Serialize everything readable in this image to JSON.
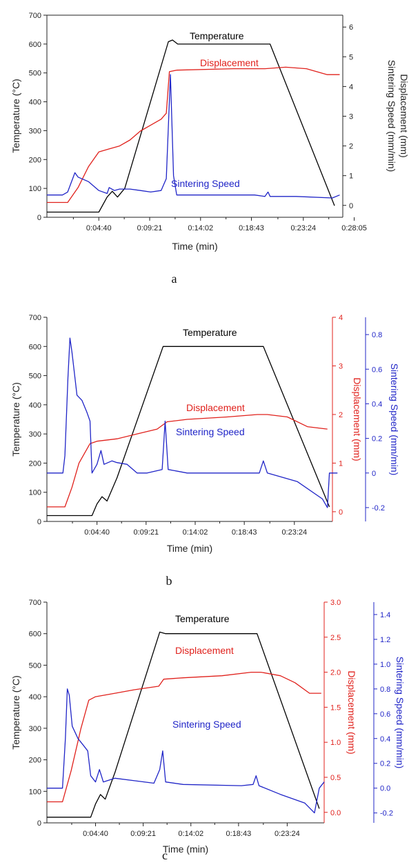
{
  "chart_data": [
    {
      "type": "line",
      "panel_label": "a",
      "xlabel": "Time (min)",
      "x_ticks": [
        "0:04:40",
        "0:09:21",
        "0:14:02",
        "0:18:43",
        "0:23:24",
        "0:28:05"
      ],
      "xlim_min": [
        0,
        28.5
      ],
      "ylabel_left": "Temperature (°C)",
      "ylim_left": [
        0,
        700
      ],
      "y_ticks_left": [
        0,
        100,
        200,
        300,
        400,
        500,
        600,
        700
      ],
      "ylabel_right": "Displacement (mm)",
      "ylabel_right2": "Sintering Speed (mm/min)",
      "ylim_right": [
        -0.4,
        6.4
      ],
      "y_ticks_right": [
        0,
        1,
        2,
        3,
        4,
        5,
        6
      ],
      "right_axes": "shared",
      "series": [
        {
          "name": "Temperature",
          "color": "#000000",
          "axis": "left",
          "points": [
            [
              0,
              18
            ],
            [
              5,
              18
            ],
            [
              5.8,
              70
            ],
            [
              6.3,
              90
            ],
            [
              6.8,
              70
            ],
            [
              7.5,
              100
            ],
            [
              11.7,
              608
            ],
            [
              12.1,
              614
            ],
            [
              12.6,
              600
            ],
            [
              21.5,
              600
            ],
            [
              27.7,
              40
            ]
          ]
        },
        {
          "name": "Displacement",
          "color": "#e0201b",
          "axis": "right",
          "points": [
            [
              0,
              0.1
            ],
            [
              2,
              0.1
            ],
            [
              3,
              0.6
            ],
            [
              4,
              1.3
            ],
            [
              5,
              1.8
            ],
            [
              6,
              1.9
            ],
            [
              7,
              2.0
            ],
            [
              8,
              2.2
            ],
            [
              9,
              2.5
            ],
            [
              10,
              2.7
            ],
            [
              11,
              2.9
            ],
            [
              11.5,
              3.1
            ],
            [
              11.8,
              4.5
            ],
            [
              12.5,
              4.55
            ],
            [
              18,
              4.6
            ],
            [
              21,
              4.6
            ],
            [
              23,
              4.65
            ],
            [
              25,
              4.6
            ],
            [
              27,
              4.4
            ],
            [
              28.2,
              4.4
            ]
          ]
        },
        {
          "name": "Sintering Speed",
          "color": "#1f24c7",
          "axis": "right",
          "points": [
            [
              0,
              0.35
            ],
            [
              1.5,
              0.35
            ],
            [
              2,
              0.45
            ],
            [
              2.7,
              1.1
            ],
            [
              3,
              0.95
            ],
            [
              4,
              0.8
            ],
            [
              5,
              0.5
            ],
            [
              5.8,
              0.4
            ],
            [
              6,
              0.6
            ],
            [
              6.5,
              0.5
            ],
            [
              7,
              0.55
            ],
            [
              8,
              0.55
            ],
            [
              9,
              0.5
            ],
            [
              10,
              0.45
            ],
            [
              11,
              0.5
            ],
            [
              11.5,
              0.9
            ],
            [
              11.9,
              4.4
            ],
            [
              12.2,
              1.0
            ],
            [
              12.5,
              0.35
            ],
            [
              20,
              0.35
            ],
            [
              21,
              0.3
            ],
            [
              21.3,
              0.45
            ],
            [
              21.5,
              0.3
            ],
            [
              24,
              0.3
            ],
            [
              27.5,
              0.25
            ],
            [
              28.2,
              0.35
            ]
          ]
        }
      ]
    },
    {
      "type": "line",
      "panel_label": "b",
      "xlabel": "Time (min)",
      "x_ticks": [
        "0:04:40",
        "0:09:21",
        "0:14:02",
        "0:18:43",
        "0:23:24"
      ],
      "xlim_min": [
        0,
        28.5
      ],
      "ylabel_left": "Temperature (°C)",
      "ylim_left": [
        0,
        700
      ],
      "y_ticks_left": [
        0,
        100,
        200,
        300,
        400,
        500,
        600,
        700
      ],
      "ylabel_right": "Displacement (mm)",
      "ylim_right": [
        -0.2,
        4
      ],
      "y_ticks_right": [
        0,
        1,
        2,
        3,
        4
      ],
      "ylabel_right2": "Sintering Speed (mm/min)",
      "ylim_right2": [
        -0.28,
        0.9
      ],
      "y_ticks_right2": [
        -0.2,
        0.0,
        0.2,
        0.4,
        0.6,
        0.8
      ],
      "series": [
        {
          "name": "Temperature",
          "color": "#000000",
          "axis": "left",
          "points": [
            [
              0,
              20
            ],
            [
              4.5,
              20
            ],
            [
              5,
              60
            ],
            [
              5.5,
              85
            ],
            [
              6,
              70
            ],
            [
              7,
              150
            ],
            [
              11.6,
              600
            ],
            [
              12,
              600
            ],
            [
              21.6,
              600
            ],
            [
              28.2,
              50
            ]
          ]
        },
        {
          "name": "Displacement",
          "color": "#e0201b",
          "axis": "right",
          "points": [
            [
              0,
              0.1
            ],
            [
              1.8,
              0.1
            ],
            [
              2.5,
              0.5
            ],
            [
              3.2,
              1.0
            ],
            [
              4.3,
              1.4
            ],
            [
              5,
              1.45
            ],
            [
              7,
              1.5
            ],
            [
              9,
              1.6
            ],
            [
              11,
              1.7
            ],
            [
              12,
              1.85
            ],
            [
              14,
              1.9
            ],
            [
              18,
              1.95
            ],
            [
              21,
              2.0
            ],
            [
              22,
              2.0
            ],
            [
              24,
              1.95
            ],
            [
              26,
              1.75
            ],
            [
              28,
              1.7
            ]
          ]
        },
        {
          "name": "Sintering Speed",
          "color": "#1f24c7",
          "axis": "right2",
          "points": [
            [
              0,
              0.0
            ],
            [
              1.6,
              0.0
            ],
            [
              1.8,
              0.1
            ],
            [
              2.1,
              0.55
            ],
            [
              2.3,
              0.78
            ],
            [
              2.5,
              0.7
            ],
            [
              3,
              0.45
            ],
            [
              3.5,
              0.42
            ],
            [
              4,
              0.35
            ],
            [
              4.3,
              0.3
            ],
            [
              4.5,
              0.0
            ],
            [
              5,
              0.05
            ],
            [
              5.4,
              0.13
            ],
            [
              5.7,
              0.05
            ],
            [
              6.5,
              0.07
            ],
            [
              7,
              0.06
            ],
            [
              8,
              0.05
            ],
            [
              9,
              0.0
            ],
            [
              10,
              0.0
            ],
            [
              11.5,
              0.02
            ],
            [
              11.8,
              0.3
            ],
            [
              12.1,
              0.02
            ],
            [
              14,
              0.0
            ],
            [
              20,
              0.0
            ],
            [
              21.2,
              0.0
            ],
            [
              21.6,
              0.07
            ],
            [
              22,
              0.0
            ],
            [
              25,
              -0.05
            ],
            [
              27.5,
              -0.15
            ],
            [
              28,
              -0.2
            ],
            [
              28.2,
              0.0
            ],
            [
              29,
              0.0
            ]
          ]
        }
      ]
    },
    {
      "type": "line",
      "panel_label": "c",
      "xlabel": "Time (min)",
      "x_ticks": [
        "0:04:40",
        "0:09:21",
        "0:14:02",
        "0:18:43",
        "0:23:24"
      ],
      "xlim_min": [
        0,
        28.5
      ],
      "ylabel_left": "Temperature (°C)",
      "ylim_left": [
        0,
        700
      ],
      "y_ticks_left": [
        0,
        100,
        200,
        300,
        400,
        500,
        600,
        700
      ],
      "ylabel_right": "Displacement (mm)",
      "ylim_right": [
        -0.15,
        3.0
      ],
      "y_ticks_right": [
        "0.0",
        "0.5",
        "1.0",
        "1.5",
        "2.0",
        "2.5",
        "3.0"
      ],
      "ylabel_right2": "Sintering Speed (mm/min)",
      "ylim_right2": [
        -0.28,
        1.5
      ],
      "y_ticks_right2": [
        "-0.2",
        "0.0",
        "0.2",
        "0.4",
        "0.6",
        "0.8",
        "1.0",
        "1.2",
        "1.4"
      ],
      "series": [
        {
          "name": "Temperature",
          "color": "#000000",
          "axis": "left",
          "points": [
            [
              0,
              18
            ],
            [
              4.5,
              18
            ],
            [
              5,
              60
            ],
            [
              5.5,
              90
            ],
            [
              6,
              75
            ],
            [
              7,
              160
            ],
            [
              11.6,
              605
            ],
            [
              12.2,
              600
            ],
            [
              21.6,
              600
            ],
            [
              28,
              45
            ]
          ]
        },
        {
          "name": "Displacement",
          "color": "#e0201b",
          "axis": "right",
          "points": [
            [
              0,
              0.15
            ],
            [
              1.6,
              0.15
            ],
            [
              2.5,
              0.6
            ],
            [
              3.5,
              1.2
            ],
            [
              4.3,
              1.6
            ],
            [
              5,
              1.65
            ],
            [
              7,
              1.7
            ],
            [
              9,
              1.75
            ],
            [
              11.5,
              1.8
            ],
            [
              12,
              1.9
            ],
            [
              14,
              1.92
            ],
            [
              18,
              1.95
            ],
            [
              21,
              2.0
            ],
            [
              22,
              2.0
            ],
            [
              24,
              1.95
            ],
            [
              25.5,
              1.85
            ],
            [
              27,
              1.7
            ],
            [
              28.2,
              1.7
            ]
          ]
        },
        {
          "name": "Sintering Speed",
          "color": "#1f24c7",
          "axis": "right2",
          "points": [
            [
              0,
              0.0
            ],
            [
              1.6,
              0.0
            ],
            [
              1.9,
              0.4
            ],
            [
              2.1,
              0.8
            ],
            [
              2.3,
              0.75
            ],
            [
              2.6,
              0.5
            ],
            [
              3.2,
              0.4
            ],
            [
              3.7,
              0.35
            ],
            [
              4.2,
              0.3
            ],
            [
              4.5,
              0.1
            ],
            [
              5,
              0.05
            ],
            [
              5.4,
              0.15
            ],
            [
              5.8,
              0.05
            ],
            [
              7,
              0.08
            ],
            [
              9,
              0.06
            ],
            [
              11,
              0.04
            ],
            [
              11.6,
              0.15
            ],
            [
              11.9,
              0.3
            ],
            [
              12.2,
              0.05
            ],
            [
              14,
              0.03
            ],
            [
              20,
              0.02
            ],
            [
              21.2,
              0.03
            ],
            [
              21.5,
              0.1
            ],
            [
              21.8,
              0.02
            ],
            [
              24,
              -0.05
            ],
            [
              26.5,
              -0.12
            ],
            [
              27.5,
              -0.2
            ],
            [
              28,
              0.0
            ],
            [
              28.5,
              0.05
            ]
          ]
        }
      ]
    }
  ],
  "annotations": {
    "a": [
      {
        "text": "Temperature",
        "color": "#000000"
      },
      {
        "text": "Displacement",
        "color": "#e0201b"
      },
      {
        "text": "Sintering Speed",
        "color": "#1f24c7"
      }
    ],
    "b": [
      {
        "text": "Temperature",
        "color": "#000000"
      },
      {
        "text": "Displacement",
        "color": "#e0201b"
      },
      {
        "text": "Sintering Speed",
        "color": "#1f24c7"
      }
    ],
    "c": [
      {
        "text": "Temperature",
        "color": "#000000"
      },
      {
        "text": "Displacement",
        "color": "#e0201b"
      },
      {
        "text": "Sintering Speed",
        "color": "#1f24c7"
      }
    ]
  }
}
